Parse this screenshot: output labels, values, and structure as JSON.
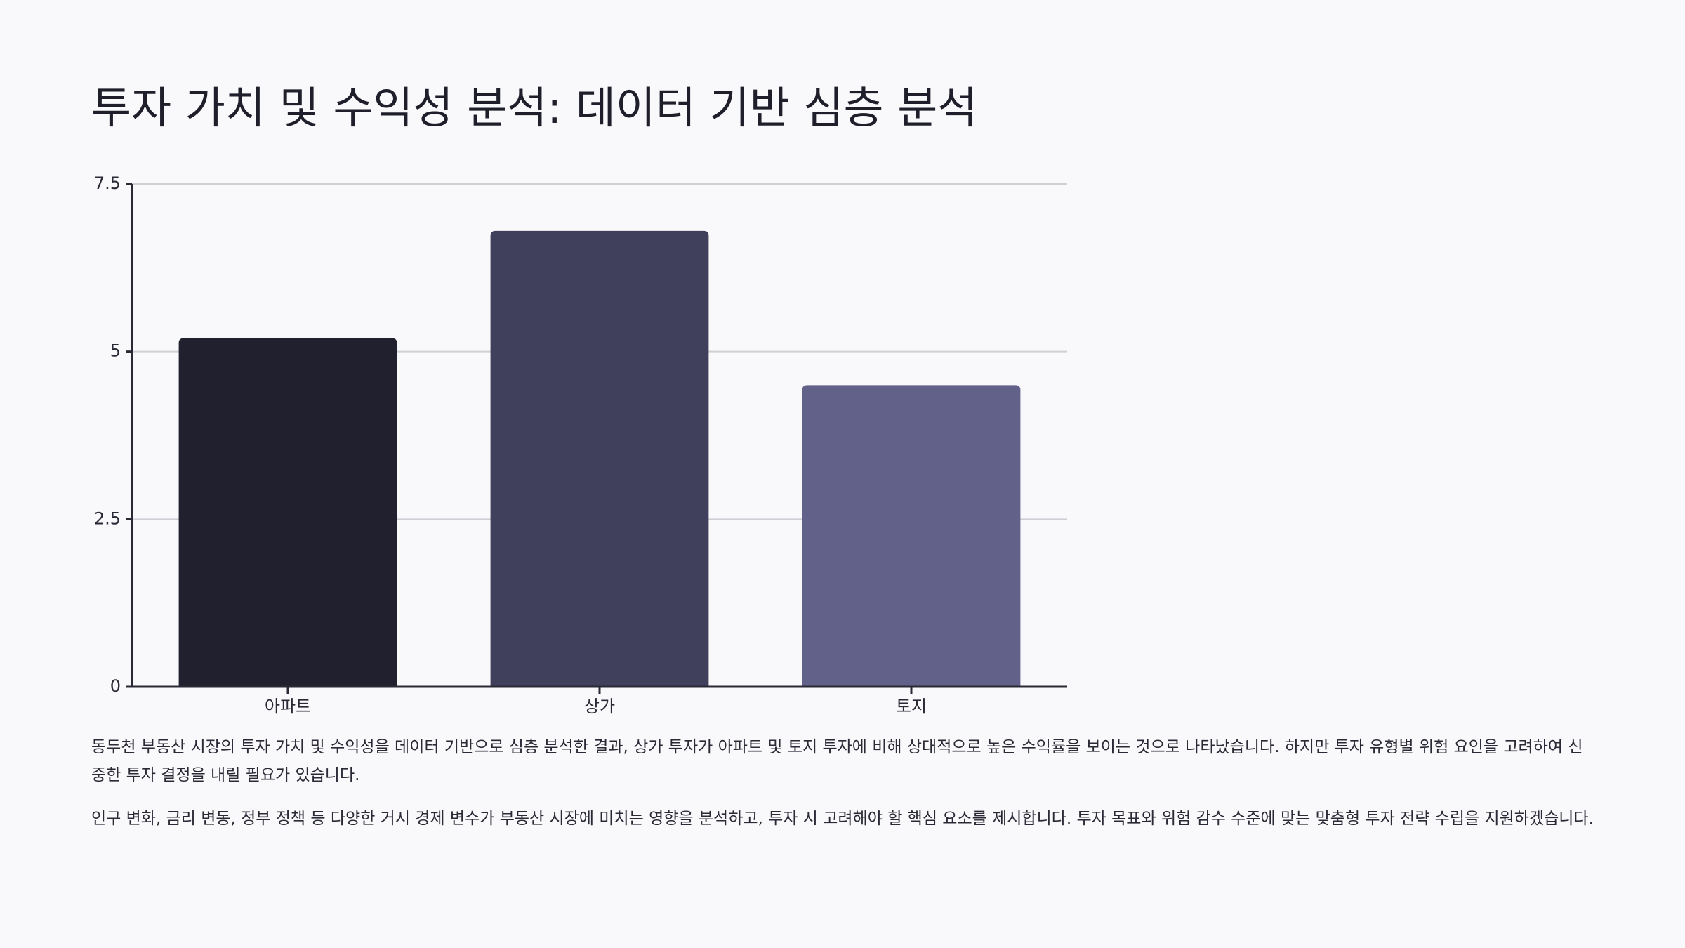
{
  "slide": {
    "title": "투자 가치 및 수익성 분석: 데이터 기반 심층 분석",
    "paragraphs": [
      "동두천 부동산 시장의 투자 가치 및 수익성을 데이터 기반으로 심층 분석한 결과, 상가 투자가 아파트 및 토지 투자에 비해 상대적으로 높은 수익률을 보이는 것으로 나타났습니다. 하지만 투자 유형별 위험 요인을 고려하여 신중한 투자 결정을 내릴 필요가 있습니다.",
      "인구 변화, 금리 변동, 정부 정책 등 다양한 거시 경제 변수가 부동산 시장에 미치는 영향을 분석하고, 투자 시 고려해야 할 핵심 요소를 제시합니다. 투자 목표와 위험 감수 수준에 맞는 맞춤형 투자 전략 수립을 지원하겠습니다."
    ]
  },
  "chart_data": {
    "type": "bar",
    "categories": [
      "아파트",
      "상가",
      "토지"
    ],
    "values": [
      5.2,
      6.8,
      4.5
    ],
    "colors": [
      "#20202e",
      "#40405c",
      "#616189"
    ],
    "ylim": [
      0,
      7.5
    ],
    "yticks": [
      0,
      2.5,
      5,
      7.5
    ],
    "ytick_labels": [
      "0",
      "2.5",
      "5",
      "7.5"
    ],
    "grid": true,
    "legend": false,
    "xlabel": "",
    "ylabel": ""
  }
}
